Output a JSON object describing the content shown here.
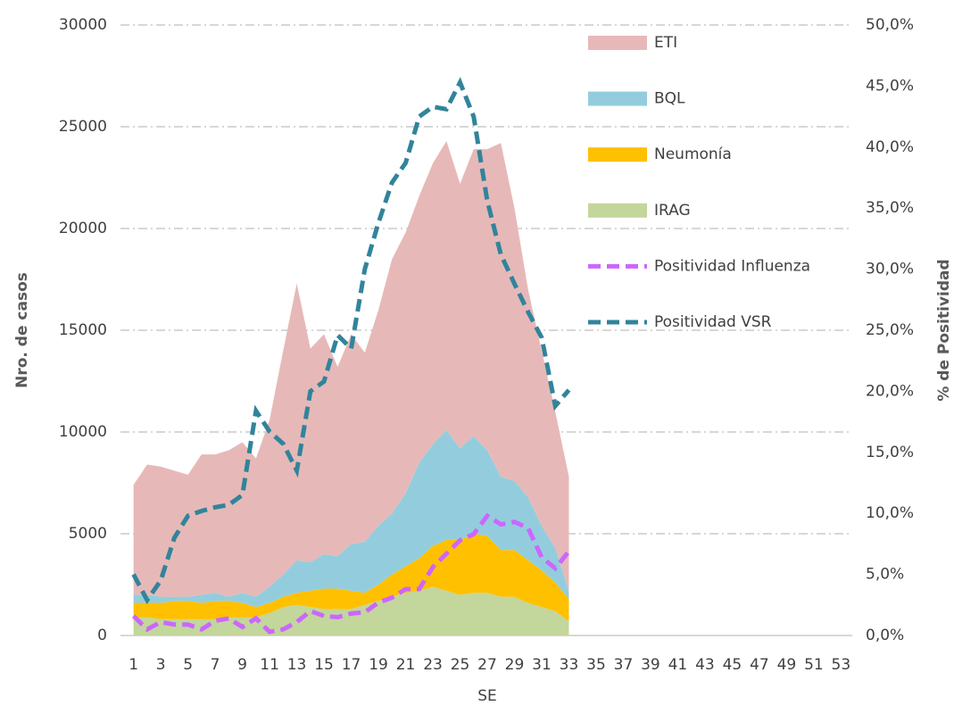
{
  "chart_data": {
    "type": "stacked-area-line",
    "x_label": "SE",
    "y_label": "Nro. de casos",
    "y2_label": "% de Positividad",
    "categories": [
      "1",
      null,
      "3",
      null,
      "5",
      null,
      "7",
      null,
      "9",
      null,
      "11",
      null,
      "13",
      null,
      "15",
      null,
      "17",
      null,
      "19",
      null,
      "21",
      null,
      "23",
      null,
      "25",
      null,
      "27",
      null,
      "29",
      null,
      "31",
      null,
      "33",
      null,
      "35",
      null,
      "37",
      null,
      "39",
      null,
      "41",
      null,
      "43",
      null,
      "45",
      null,
      "47",
      null,
      "49",
      null,
      "51",
      null,
      "53"
    ],
    "ylim": [
      0,
      30000
    ],
    "yticks": [
      0,
      5000,
      10000,
      15000,
      20000,
      25000,
      30000
    ],
    "y2lim": [
      0,
      50
    ],
    "y2ticks": [
      {
        "value": 0,
        "label": "0,0%"
      },
      {
        "value": 5,
        "label": "5,0%"
      },
      {
        "value": 10,
        "label": "10,0%"
      },
      {
        "value": 15,
        "label": "15,0%"
      },
      {
        "value": 20,
        "label": "20,0%"
      },
      {
        "value": 25,
        "label": "25,0%"
      },
      {
        "value": 30,
        "label": "30,0%"
      },
      {
        "value": 35,
        "label": "35,0%"
      },
      {
        "value": 40,
        "label": "40,0%"
      },
      {
        "value": 45,
        "label": "45,0%"
      },
      {
        "value": 50,
        "label": "50,0%"
      }
    ],
    "grid": true,
    "series": [
      {
        "name": "ETI",
        "kind": "area",
        "color": "#e6b9b8",
        "values": [
          5400,
          6400,
          6400,
          6200,
          6000,
          6900,
          6800,
          7200,
          7400,
          6800,
          8200,
          11000,
          13600,
          10500,
          10800,
          9300,
          10300,
          9300,
          10600,
          12500,
          12800,
          13100,
          13800,
          14200,
          13000,
          14100,
          14800,
          16400,
          13400,
          10200,
          8600,
          6700,
          5600,
          null,
          null,
          null,
          null,
          null,
          null,
          null,
          null,
          null,
          null,
          null,
          null,
          null,
          null,
          null,
          null,
          null,
          null,
          null,
          null
        ]
      },
      {
        "name": "BQL",
        "kind": "area",
        "color": "#93cddd",
        "values": [
          400,
          400,
          300,
          200,
          200,
          400,
          400,
          200,
          500,
          500,
          800,
          1100,
          1600,
          1400,
          1700,
          1600,
          2300,
          2500,
          2900,
          3000,
          3600,
          4700,
          5000,
          5400,
          4500,
          4800,
          4200,
          3600,
          3400,
          3100,
          2200,
          1700,
          400,
          null,
          null,
          null,
          null,
          null,
          null,
          null,
          null,
          null,
          null,
          null,
          null,
          null,
          null,
          null,
          null,
          null,
          null,
          null,
          null
        ]
      },
      {
        "name": "Neumonía",
        "kind": "area",
        "color": "#ffc000",
        "values": [
          700,
          700,
          800,
          900,
          900,
          800,
          900,
          800,
          700,
          500,
          500,
          500,
          600,
          800,
          1000,
          1000,
          900,
          600,
          800,
          1100,
          1300,
          1600,
          2000,
          2500,
          2700,
          2900,
          2800,
          2300,
          2300,
          2100,
          1800,
          1400,
          1100,
          null,
          null,
          null,
          null,
          null,
          null,
          null,
          null,
          null,
          null,
          null,
          null,
          null,
          null,
          null,
          null,
          null,
          null,
          null,
          null
        ]
      },
      {
        "name": "IRAG",
        "kind": "area",
        "color": "#c3d69b",
        "values": [
          900,
          900,
          800,
          800,
          800,
          800,
          800,
          900,
          900,
          900,
          1100,
          1400,
          1500,
          1400,
          1300,
          1300,
          1300,
          1500,
          1700,
          1900,
          2100,
          2200,
          2400,
          2200,
          2000,
          2100,
          2100,
          1900,
          1900,
          1600,
          1400,
          1200,
          700,
          null,
          null,
          null,
          null,
          null,
          null,
          null,
          null,
          null,
          null,
          null,
          null,
          null,
          null,
          null,
          null,
          null,
          null,
          null,
          null
        ]
      },
      {
        "name": "Positividad Influenza",
        "kind": "line",
        "axis": "y2",
        "color": "#cc66ff",
        "values": [
          1.6,
          0.5,
          1.1,
          0.9,
          0.9,
          0.5,
          1.2,
          1.4,
          0.7,
          1.4,
          0.3,
          0.5,
          1.1,
          2.0,
          1.6,
          1.5,
          1.8,
          1.9,
          2.7,
          3.1,
          3.8,
          3.8,
          5.6,
          6.7,
          7.8,
          8.3,
          9.8,
          9.1,
          9.3,
          8.8,
          6.4,
          5.5,
          6.9,
          null,
          null,
          null,
          null,
          null,
          null,
          null,
          null,
          null,
          null,
          null,
          null,
          null,
          null,
          null,
          null,
          null,
          null,
          null,
          null
        ]
      },
      {
        "name": "Positividad  VSR",
        "kind": "line",
        "axis": "y2",
        "color": "#31849b",
        "values": [
          5.0,
          2.9,
          4.5,
          8.0,
          9.8,
          10.2,
          10.5,
          10.7,
          11.5,
          18.4,
          16.7,
          15.7,
          13.5,
          20.0,
          20.8,
          24.6,
          23.5,
          30.0,
          33.8,
          37.1,
          38.7,
          42.5,
          43.3,
          43.1,
          45.3,
          42.5,
          35.6,
          31.2,
          28.8,
          26.5,
          24.4,
          18.8,
          20.1,
          null,
          null,
          null,
          null,
          null,
          null,
          null,
          null,
          null,
          null,
          null,
          null,
          null,
          null,
          null,
          null,
          null,
          null,
          null,
          null
        ]
      }
    ]
  }
}
